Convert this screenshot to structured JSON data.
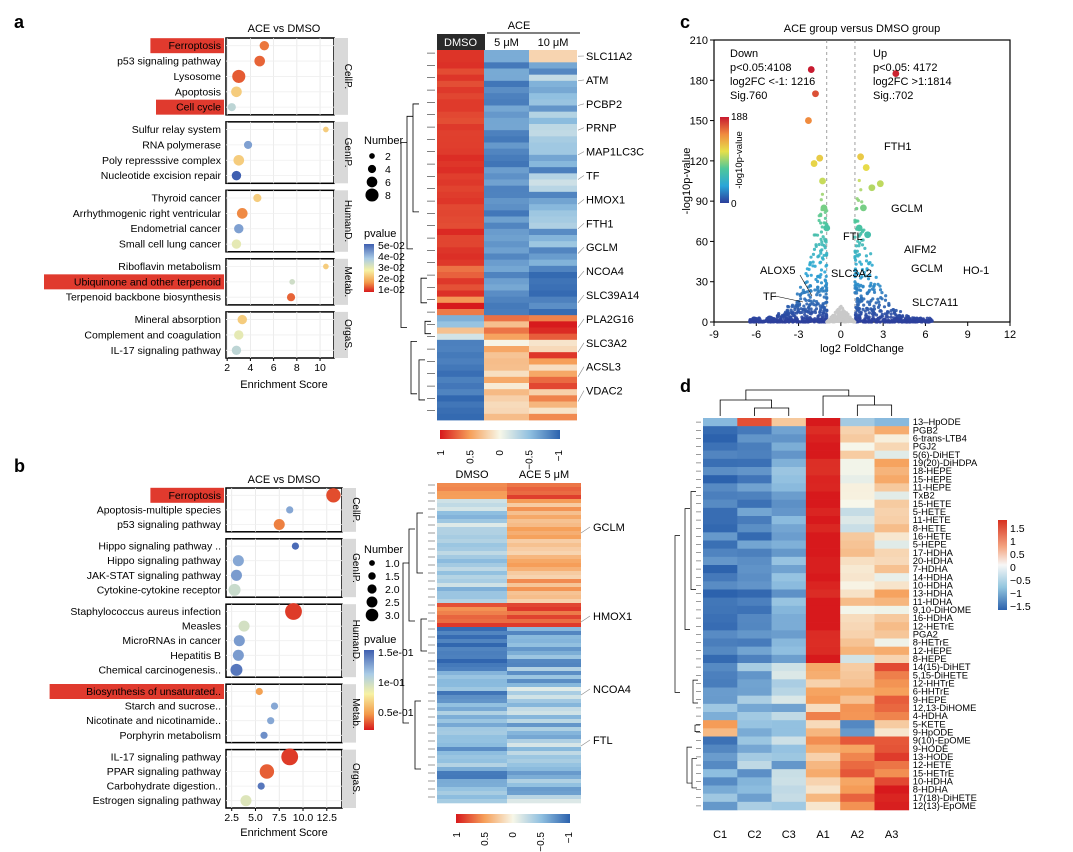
{
  "colors": {
    "red": "#d7191c",
    "orange": "#f08a3e",
    "yellow": "#f7f3a6",
    "lightblue": "#9fcae6",
    "blue": "#3165a8",
    "darkblue": "#26307e",
    "highlight": "#e03a2e",
    "facet": "#d9d9d9"
  },
  "panels": {
    "a": "a",
    "b": "b",
    "c": "c",
    "d": "d"
  },
  "panel_a": {
    "title": "ACE vs DMSO",
    "xlabel": "Enrichment Score",
    "xticks": [
      "2",
      "4",
      "6",
      "8",
      "10"
    ],
    "groups": [
      {
        "name": "CellP.",
        "terms": [
          {
            "label": "Ferroptosis",
            "x": 5.2,
            "size": 5,
            "p": 0.01,
            "highlight": true
          },
          {
            "label": "p53 signaling pathway",
            "x": 4.8,
            "size": 6,
            "p": 0.008,
            "highlight": false
          },
          {
            "label": "Lysosome",
            "x": 3.0,
            "size": 8,
            "p": 0.007,
            "highlight": false
          },
          {
            "label": "Apoptosis",
            "x": 2.8,
            "size": 6,
            "p": 0.02,
            "highlight": false
          },
          {
            "label": "Cell cycle",
            "x": 2.4,
            "size": 4,
            "p": 0.035,
            "highlight": true
          }
        ]
      },
      {
        "name": "GenIP.",
        "terms": [
          {
            "label": "Sulfur relay system",
            "x": 10.5,
            "size": 2,
            "p": 0.02,
            "highlight": false
          },
          {
            "label": "RNA polymerase",
            "x": 3.8,
            "size": 4,
            "p": 0.045,
            "highlight": false
          },
          {
            "label": "Poly represssive complex",
            "x": 3.0,
            "size": 6,
            "p": 0.02,
            "highlight": false
          },
          {
            "label": "Nucleotide excision repair",
            "x": 2.8,
            "size": 5,
            "p": 0.055,
            "highlight": false
          }
        ]
      },
      {
        "name": "HumanD.",
        "terms": [
          {
            "label": "Thyroid cancer",
            "x": 4.6,
            "size": 4,
            "p": 0.02,
            "highlight": false
          },
          {
            "label": "Arrhythmogenic right ventricular",
            "x": 3.3,
            "size": 6,
            "p": 0.012,
            "highlight": false
          },
          {
            "label": "Endometrial cancer",
            "x": 3.0,
            "size": 5,
            "p": 0.045,
            "highlight": false
          },
          {
            "label": "Small cell lung cancer",
            "x": 2.8,
            "size": 5,
            "p": 0.028,
            "highlight": false
          }
        ]
      },
      {
        "name": "Metab.",
        "terms": [
          {
            "label": "Riboflavin metabolism",
            "x": 10.5,
            "size": 2,
            "p": 0.02,
            "highlight": false
          },
          {
            "label": "Ubiquinone and other terpenoid",
            "x": 7.6,
            "size": 2,
            "p": 0.032,
            "highlight": true
          },
          {
            "label": "Terpenoid backbone biosynthesis",
            "x": 7.5,
            "size": 4,
            "p": 0.008,
            "highlight": false
          }
        ]
      },
      {
        "name": "OrgaS.",
        "terms": [
          {
            "label": "Mineral absorption",
            "x": 3.3,
            "size": 5,
            "p": 0.02,
            "highlight": false
          },
          {
            "label": "Complement and coagulation",
            "x": 3.0,
            "size": 5,
            "p": 0.028,
            "highlight": false
          },
          {
            "label": "IL-17 signaling pathway",
            "x": 2.8,
            "size": 5,
            "p": 0.035,
            "highlight": false
          }
        ]
      }
    ],
    "size_legend": {
      "title": "Number",
      "labels": [
        "2",
        "4",
        "6",
        "8"
      ]
    },
    "color_legend": {
      "title": "pvalue",
      "labels": [
        "5e-02",
        "4e-02",
        "3e-02",
        "2e-02",
        "1e-02"
      ]
    },
    "heatmap": {
      "columns": [
        "DMSO",
        "5 μM",
        "10 μM"
      ],
      "group_label": "ACE",
      "genes": [
        "SLC11A2",
        "ATM",
        "PCBP2",
        "PRNP",
        "MAP1LC3C",
        "TF",
        "HMOX1",
        "FTH1",
        "GCLM",
        "NCOA4",
        "SLC39A14",
        "PLA2G16",
        "SLC3A2",
        "ACSL3",
        "VDAC2"
      ],
      "scale_labels": [
        "1",
        "0.5",
        "0",
        "−0.5",
        "−1"
      ]
    }
  },
  "panel_b": {
    "title": "ACE vs DMSO",
    "xlabel": "Enrichment Score",
    "xticks": [
      "2.5",
      "5.0",
      "7.5",
      "10.0",
      "12.5"
    ],
    "groups": [
      {
        "name": "CellP.",
        "terms": [
          {
            "label": "Ferroptosis",
            "x": 13.2,
            "size": 2.5,
            "p": 0.015,
            "highlight": true
          },
          {
            "label": "Apoptosis-multiple species",
            "x": 8.6,
            "size": 1.0,
            "p": 0.12,
            "highlight": false
          },
          {
            "label": "p53 signaling pathway",
            "x": 7.5,
            "size": 1.8,
            "p": 0.03,
            "highlight": false
          }
        ]
      },
      {
        "name": "GenIP.",
        "terms": [
          {
            "label": "Hippo signaling pathway ..",
            "x": 9.2,
            "size": 1.0,
            "p": 0.145,
            "highlight": false
          },
          {
            "label": "Hippo signaling pathway",
            "x": 3.2,
            "size": 1.8,
            "p": 0.12,
            "highlight": false
          },
          {
            "label": "JAK-STAT signaling pathway",
            "x": 3.0,
            "size": 1.8,
            "p": 0.125,
            "highlight": false
          },
          {
            "label": "Cytokine-cytokine receptor",
            "x": 2.8,
            "size": 2.0,
            "p": 0.09,
            "highlight": false
          }
        ]
      },
      {
        "name": "HumanD.",
        "terms": [
          {
            "label": "Staphylococcus aureus infection",
            "x": 9.0,
            "size": 3.0,
            "p": 0.01,
            "highlight": false
          },
          {
            "label": "Measles",
            "x": 3.8,
            "size": 1.8,
            "p": 0.085,
            "highlight": false
          },
          {
            "label": "MicroRNAs in cancer",
            "x": 3.3,
            "size": 1.8,
            "p": 0.125,
            "highlight": false
          },
          {
            "label": "Hepatitis B",
            "x": 3.2,
            "size": 1.8,
            "p": 0.125,
            "highlight": false
          },
          {
            "label": "Chemical carcinogenesis..",
            "x": 3.0,
            "size": 2.0,
            "p": 0.14,
            "highlight": false
          }
        ]
      },
      {
        "name": "Metab.",
        "terms": [
          {
            "label": "Biosynthesis of unsaturated..",
            "x": 5.4,
            "size": 1.0,
            "p": 0.04,
            "highlight": true
          },
          {
            "label": "Starch and sucrose..",
            "x": 7.0,
            "size": 1.0,
            "p": 0.12,
            "highlight": false
          },
          {
            "label": "Nicotinate and nicotinamide..",
            "x": 6.6,
            "size": 1.0,
            "p": 0.12,
            "highlight": false
          },
          {
            "label": "Porphyrin metabolism",
            "x": 5.9,
            "size": 1.0,
            "p": 0.13,
            "highlight": false
          }
        ]
      },
      {
        "name": "OrgaS.",
        "terms": [
          {
            "label": "IL-17 signaling pathway",
            "x": 8.6,
            "size": 3.0,
            "p": 0.01,
            "highlight": false
          },
          {
            "label": "PPAR signaling pathway",
            "x": 6.2,
            "size": 2.5,
            "p": 0.02,
            "highlight": false
          },
          {
            "label": "Carbohydrate digestion..",
            "x": 5.6,
            "size": 1.0,
            "p": 0.14,
            "highlight": false
          },
          {
            "label": "Estrogen signaling pathway",
            "x": 4.0,
            "size": 1.8,
            "p": 0.08,
            "highlight": false
          }
        ]
      }
    ],
    "size_legend": {
      "title": "Number",
      "labels": [
        "1.0",
        "1.5",
        "2.0",
        "2.5",
        "3.0"
      ]
    },
    "color_legend": {
      "title": "pvalue",
      "labels": [
        "1.5e-01",
        "1e-01",
        "0.5e-01"
      ]
    },
    "heatmap": {
      "columns": [
        "DMSO",
        "ACE 5 μM"
      ],
      "genes": [
        "GCLM",
        "HMOX1",
        "NCOA4",
        "FTL"
      ],
      "scale_labels": [
        "1",
        "0.5",
        "0",
        "−0.5",
        "−1"
      ]
    }
  },
  "panel_c": {
    "title": "ACE group versus DMSO group",
    "xlabel": "log2 FoldChange",
    "ylabel": "-log10p-value",
    "xticks": [
      "-9",
      "-6",
      "-3",
      "0",
      "3",
      "6",
      "9",
      "12"
    ],
    "yticks": [
      "0",
      "30",
      "60",
      "90",
      "120",
      "150",
      "180",
      "210"
    ],
    "down_text": [
      "Down",
      "p<0.05:4108",
      "log2FC <-1: 1216",
      "Sig.760"
    ],
    "up_text": [
      "Up",
      "p<0.05: 4172",
      "log2FC >1:1814",
      "Sig.:702"
    ],
    "colorbar": {
      "max": "188",
      "min": "0",
      "title": "-log10p-value"
    },
    "gene_labels": [
      "FTH1",
      "GCLM",
      "FTL",
      "AIFM2",
      "ALOX5",
      "SLC3A2",
      "GCLM",
      "HO-1",
      "TF",
      "SLC7A11"
    ]
  },
  "panel_d": {
    "columns": [
      "C1",
      "C2",
      "C3",
      "A1",
      "A2",
      "A3"
    ],
    "rows": [
      "13–HpODE",
      "PGB2",
      "6-trans-LTB4",
      "PGJ2",
      "5(6)-DiHET",
      "19(20)-DiHDPA",
      "18-HEPE",
      "15-HEPE",
      "11-HEPE",
      "TxB2",
      "15-HETE",
      "5-HETE",
      "11-HETE",
      "8-HETE",
      "16-HETE",
      "5-HEPE",
      "17-HDHA",
      "20-HDHA",
      "7-HDHA",
      "14-HDHA",
      "10-HDHA",
      "13-HDHA",
      "11-HDHA",
      "9,10-DiHOME",
      "16-HDHA",
      "12-HETrE",
      "PGA2",
      "8-HETrE",
      "12-HEPE",
      "8-HEPE",
      "14(15)-DiHET",
      "5,15-DiHETE",
      "12-HHTrE",
      "6-HHTrE",
      "9-HEPE",
      "12,13-DiHOME",
      "4-HDHA",
      "5-KETE",
      "9-HpODE",
      "9(10)-EpOME",
      "9-HODE",
      "13-HODE",
      "12-HETE",
      "15-HETrE",
      "10-HDHA",
      "8-HDHA",
      "17(18)-DiHETE",
      "12(13)-EpOME"
    ],
    "scale_labels": [
      "1.5",
      "1",
      "0.5",
      "0",
      "−0.5",
      "−1",
      "−1.5"
    ]
  }
}
